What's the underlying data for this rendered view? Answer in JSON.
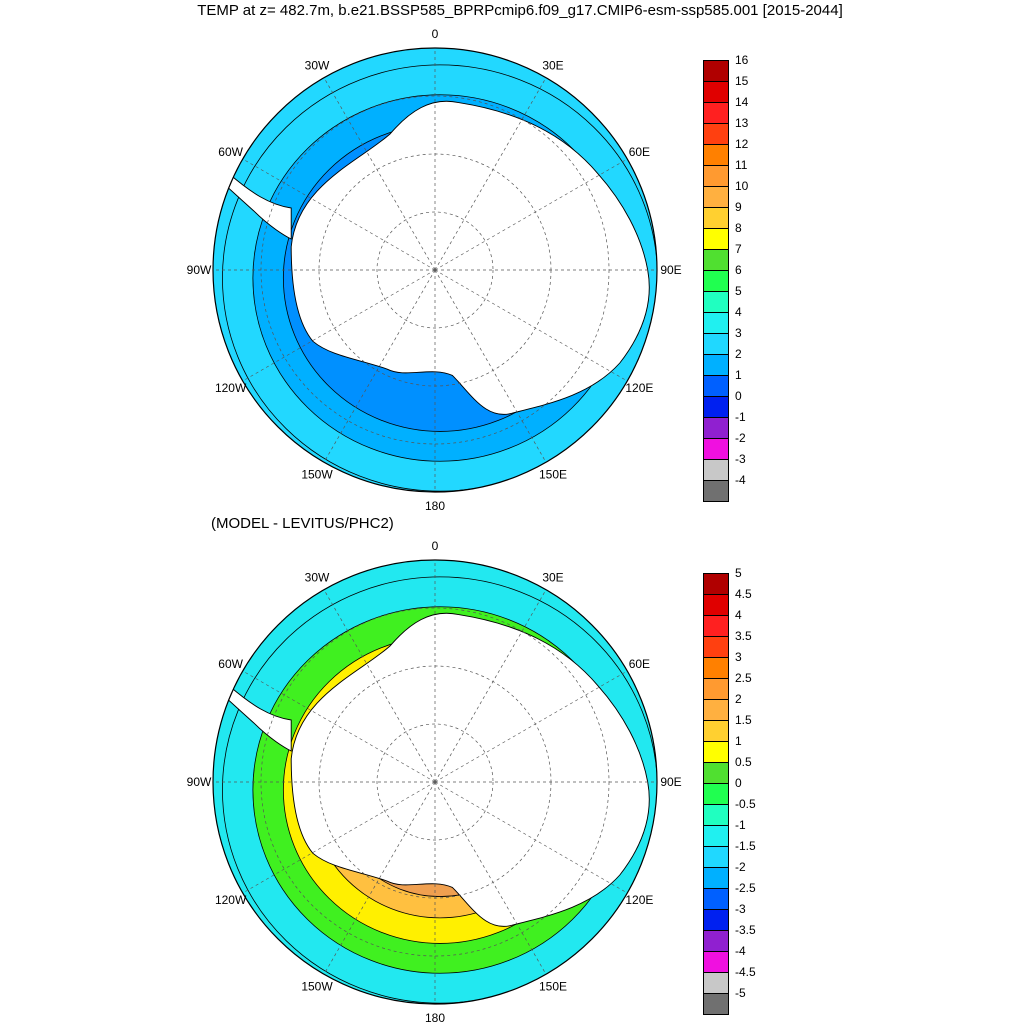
{
  "title": "TEMP at z= 482.7m, b.e21.BSSP585_BPRPcmip6.f09_g17.CMIP6-esm-ssp585.001 [2015-2044]",
  "subtitle": "(MODEL - LEVITUS/PHC2)",
  "lon_labels": [
    "0",
    "30E",
    "60E",
    "90E",
    "120E",
    "150E",
    "180",
    "150W",
    "120W",
    "90W",
    "60W",
    "30W"
  ],
  "colors": {
    "land": "#ffffff",
    "outline": "#000000",
    "grid": "#555555"
  },
  "chart_data": [
    {
      "type": "heatmap",
      "name": "temperature-map",
      "projection": "south-polar-stereographic",
      "legend_placement": "right",
      "levels": [
        "16",
        "15",
        "14",
        "13",
        "12",
        "11",
        "10",
        "9",
        "8",
        "7",
        "6",
        "5",
        "4",
        "3",
        "2",
        "1",
        "0",
        "-1",
        "-2",
        "-3",
        "-4"
      ],
      "colors": [
        "#b00000",
        "#e00000",
        "#ff2020",
        "#ff4010",
        "#ff8000",
        "#ff9a30",
        "#ffb040",
        "#ffd030",
        "#ffff00",
        "#50e030",
        "#20ff50",
        "#20ffc0",
        "#20f0f0",
        "#20d8ff",
        "#00b0ff",
        "#0060ff",
        "#0020f0",
        "#9020d0",
        "#f010e0",
        "#c8c8c8",
        "#707070"
      ],
      "rings": [
        {
          "level": "4",
          "color": "#22d8ff"
        },
        {
          "level": "3",
          "color": "#00b0ff"
        },
        {
          "level": "2",
          "color": "#0090ff"
        }
      ]
    },
    {
      "type": "heatmap",
      "name": "difference-map",
      "projection": "south-polar-stereographic",
      "legend_placement": "right",
      "levels": [
        "5",
        "4.5",
        "4",
        "3.5",
        "3",
        "2.5",
        "2",
        "1.5",
        "1",
        "0.5",
        "0",
        "-0.5",
        "-1",
        "-1.5",
        "-2",
        "-2.5",
        "-3",
        "-3.5",
        "-4",
        "-4.5",
        "-5"
      ],
      "colors": [
        "#b00000",
        "#e00000",
        "#ff2020",
        "#ff4010",
        "#ff8000",
        "#ff9a30",
        "#ffb040",
        "#ffd030",
        "#ffff00",
        "#50e030",
        "#20ff50",
        "#20ffc0",
        "#20f0f0",
        "#20d8ff",
        "#00b0ff",
        "#0060ff",
        "#0020f0",
        "#9020d0",
        "#f010e0",
        "#c8c8c8",
        "#707070"
      ],
      "rings": [
        {
          "level": "-1",
          "color": "#22e8f0"
        },
        {
          "level": "0.5",
          "color": "#40f020"
        },
        {
          "level": "1.5",
          "color": "#fff000"
        },
        {
          "level": "2.5",
          "color": "#ffc040"
        },
        {
          "level": "3",
          "color": "#f0a050"
        }
      ]
    }
  ]
}
